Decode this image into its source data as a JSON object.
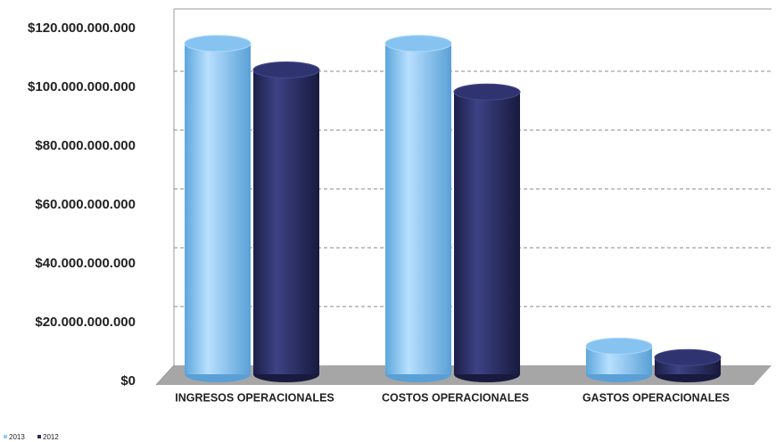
{
  "chart_data": {
    "type": "bar",
    "categories": [
      "INGRESOS OPERACIONALES",
      "COSTOS OPERACIONALES",
      "GASTOS OPERACIONALES"
    ],
    "series": [
      {
        "name": "2013",
        "color": "#8ecbf7",
        "values": [
          112500000000,
          112500000000,
          9600000000
        ]
      },
      {
        "name": "2012",
        "color": "#262a5e",
        "values": [
          103500000000,
          96000000000,
          5700000000
        ]
      }
    ],
    "ylim": [
      0,
      120000000000
    ],
    "yticks": [
      {
        "value": 0,
        "label": "$0"
      },
      {
        "value": 20000000000,
        "label": "$20.000.000.000"
      },
      {
        "value": 40000000000,
        "label": "$40.000.000.000"
      },
      {
        "value": 60000000000,
        "label": "$60.000.000.000"
      },
      {
        "value": 80000000000,
        "label": "$80.000.000.000"
      },
      {
        "value": 100000000000,
        "label": "$100.000.000.000"
      },
      {
        "value": 120000000000,
        "label": "$120.000.000.000"
      }
    ],
    "grid": true,
    "legend": "bottom-left"
  }
}
